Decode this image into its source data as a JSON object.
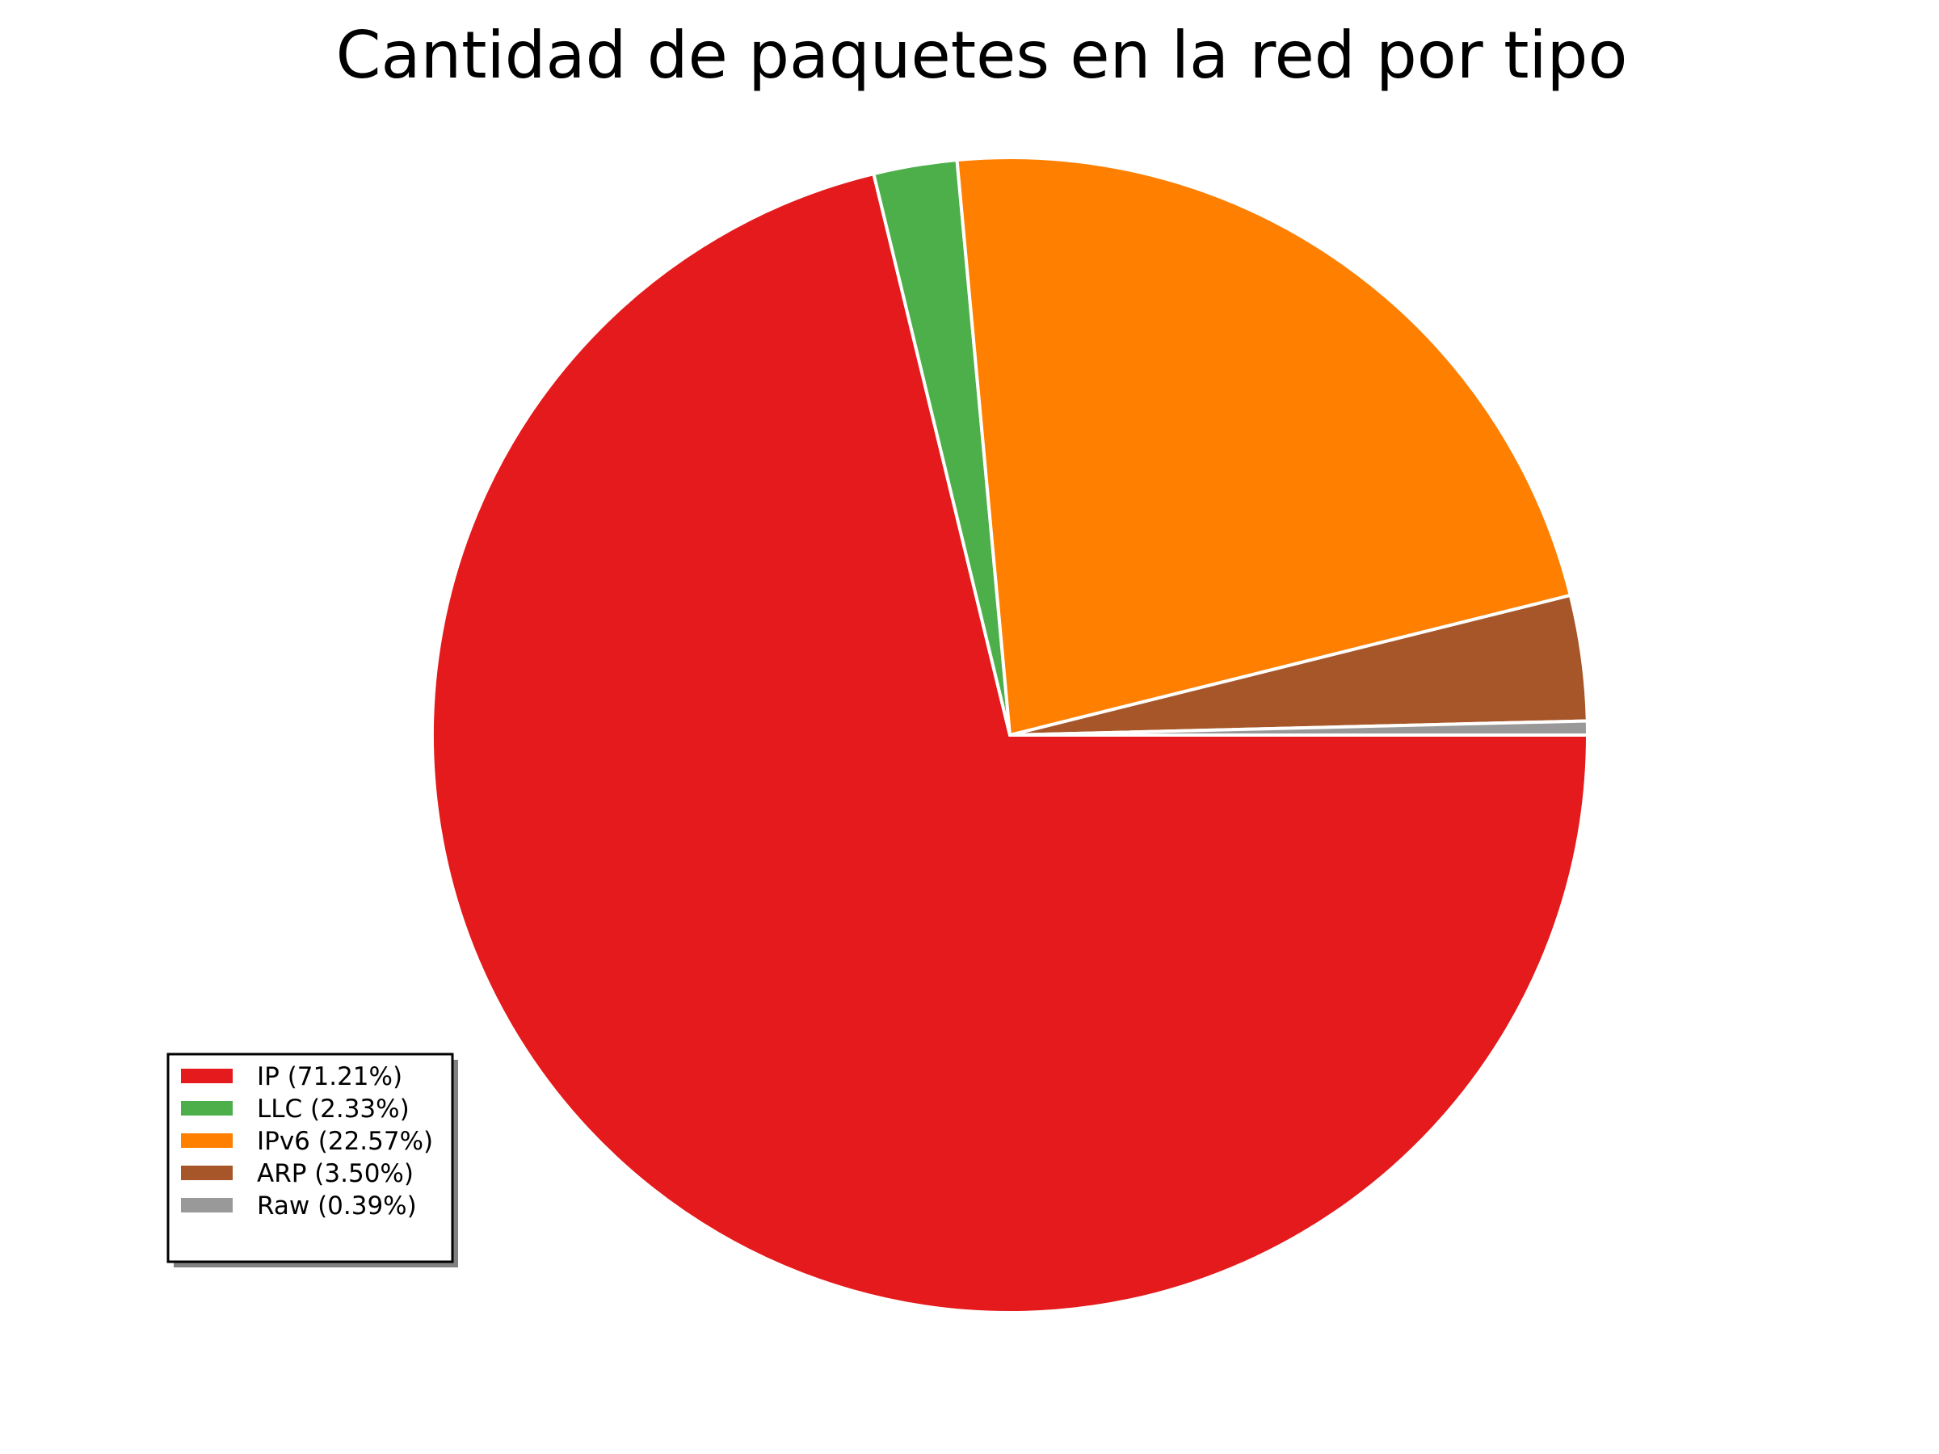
{
  "chart_data": {
    "type": "pie",
    "title": "Cantidad de paquetes en la red por tipo",
    "start_angle_deg": 0,
    "direction": "clockwise",
    "legend_position": "lower-left",
    "slices": [
      {
        "label": "IP (71.21%)",
        "value": 71.21,
        "color": "#e41a1c"
      },
      {
        "label": "LLC (2.33%)",
        "value": 2.33,
        "color": "#4daf4a"
      },
      {
        "label": "IPv6 (22.57%)",
        "value": 22.57,
        "color": "#ff7f00"
      },
      {
        "label": "ARP (3.50%)",
        "value": 3.5,
        "color": "#a65628"
      },
      {
        "label": "Raw (0.39%)",
        "value": 0.39,
        "color": "#999999"
      }
    ]
  }
}
